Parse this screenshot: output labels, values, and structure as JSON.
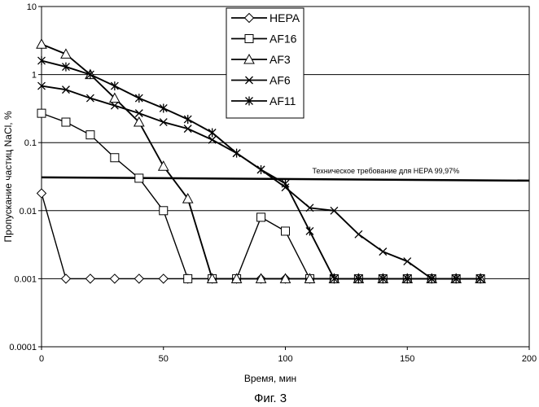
{
  "figure_caption": "Фиг. 3",
  "chart_data": {
    "type": "line",
    "xlabel": "Время, мин",
    "ylabel": "Пропускание частиц NaCl, %",
    "xlim": [
      0,
      200
    ],
    "ylim": [
      0.0001,
      10
    ],
    "yscale": "log",
    "x_ticks": [
      0,
      50,
      100,
      150,
      200
    ],
    "y_ticks": [
      {
        "value": 10,
        "label": "10"
      },
      {
        "value": 1,
        "label": "1"
      },
      {
        "value": 0.1,
        "label": "0.1"
      },
      {
        "value": 0.01,
        "label": "0.01"
      },
      {
        "value": 0.001,
        "label": "0.001"
      },
      {
        "value": 0.0001,
        "label": "0.0001"
      }
    ],
    "grid": "horizontal",
    "legend_placement": "top-center",
    "annotation": {
      "text": "Техническое требование для HEPA 99,97%",
      "y": 0.03,
      "x_start": 0,
      "x_end": 200
    },
    "series": [
      {
        "name": "HEPA",
        "marker": "diamond",
        "x": [
          0,
          10,
          20,
          30,
          40,
          50,
          60,
          70,
          80,
          90,
          100,
          110,
          120,
          130,
          140,
          150,
          160,
          170,
          180
        ],
        "y": [
          0.018,
          0.001,
          0.001,
          0.001,
          0.001,
          0.001,
          0.001,
          0.001,
          0.001,
          0.001,
          0.001,
          0.001,
          0.001,
          0.001,
          0.001,
          0.001,
          0.001,
          0.001,
          0.001
        ]
      },
      {
        "name": "AF16",
        "marker": "square",
        "x": [
          0,
          10,
          20,
          30,
          40,
          50,
          60,
          70,
          80,
          90,
          100,
          110,
          120,
          130,
          140,
          150,
          160,
          170,
          180
        ],
        "y": [
          0.27,
          0.2,
          0.13,
          0.06,
          0.03,
          0.01,
          0.001,
          0.001,
          0.001,
          0.008,
          0.005,
          0.001,
          0.001,
          0.001,
          0.001,
          0.001,
          0.001,
          0.001,
          0.001
        ]
      },
      {
        "name": "AF3",
        "marker": "triangle",
        "x": [
          0,
          10,
          20,
          30,
          40,
          50,
          60,
          70,
          80,
          90,
          100,
          110,
          120,
          130,
          140,
          150,
          160,
          170,
          180
        ],
        "y": [
          2.8,
          2.0,
          1.0,
          0.45,
          0.2,
          0.045,
          0.015,
          0.001,
          0.001,
          0.001,
          0.001,
          0.001,
          0.001,
          0.001,
          0.001,
          0.001,
          0.001,
          0.001,
          0.001
        ]
      },
      {
        "name": "AF6",
        "marker": "x",
        "x": [
          0,
          10,
          20,
          30,
          40,
          50,
          60,
          70,
          80,
          90,
          100,
          110,
          120,
          130,
          140,
          150,
          160,
          170,
          180
        ],
        "y": [
          0.68,
          0.6,
          0.45,
          0.35,
          0.27,
          0.2,
          0.16,
          0.11,
          0.07,
          0.04,
          0.022,
          0.011,
          0.01,
          0.0045,
          0.0025,
          0.0018,
          0.001,
          0.001,
          0.001
        ]
      },
      {
        "name": "AF11",
        "marker": "asterisk",
        "x": [
          0,
          10,
          20,
          30,
          40,
          50,
          60,
          70,
          80,
          90,
          100,
          110,
          120,
          130,
          140,
          150,
          160,
          170,
          180
        ],
        "y": [
          1.6,
          1.3,
          1.0,
          0.68,
          0.45,
          0.32,
          0.22,
          0.14,
          0.07,
          0.04,
          0.025,
          0.005,
          0.001,
          0.001,
          0.001,
          0.001,
          0.001,
          0.001,
          0.001
        ]
      }
    ]
  }
}
